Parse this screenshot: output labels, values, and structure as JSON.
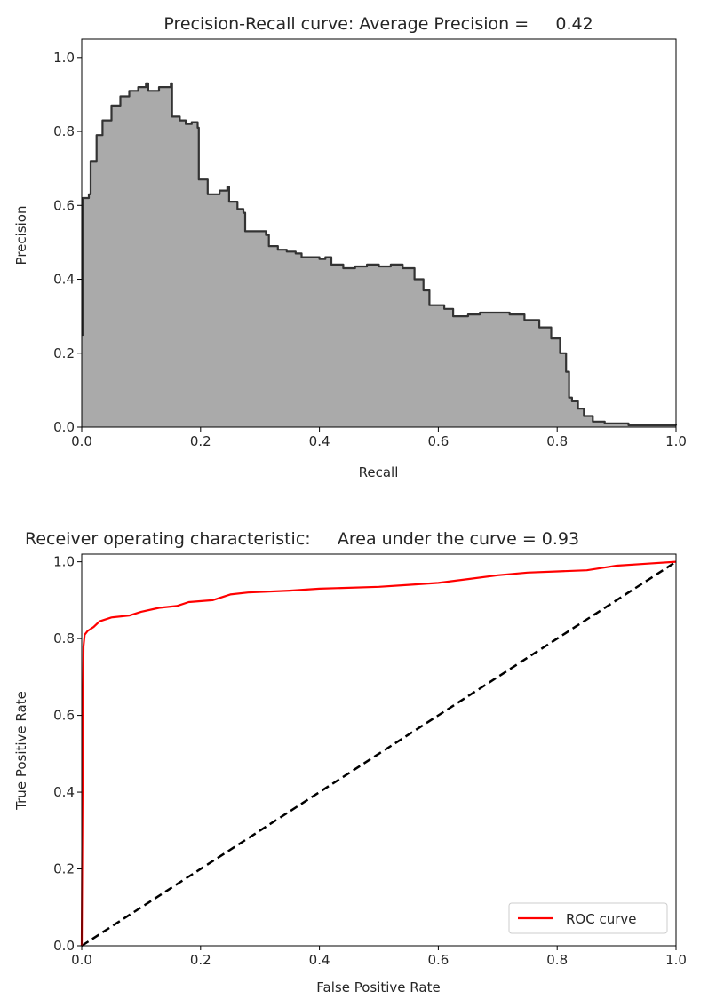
{
  "chart_data": [
    {
      "type": "area",
      "title": "Precision-Recall curve: Average Precision =     0.42",
      "xlabel": "Recall",
      "ylabel": "Precision",
      "xlim": [
        0.0,
        1.0
      ],
      "ylim": [
        0.0,
        1.05
      ],
      "xticks": [
        "0.0",
        "0.2",
        "0.4",
        "0.6",
        "0.8",
        "1.0"
      ],
      "yticks": [
        "0.0",
        "0.2",
        "0.4",
        "0.6",
        "0.8",
        "1.0"
      ],
      "grid": false,
      "legend": null,
      "colors": {
        "fill": "#aaaaaa",
        "line": "#333333"
      },
      "series": [
        {
          "values": [
            [
              0.0,
              0.25
            ],
            [
              0.002,
              0.62
            ],
            [
              0.012,
              0.63
            ],
            [
              0.015,
              0.72
            ],
            [
              0.025,
              0.79
            ],
            [
              0.035,
              0.83
            ],
            [
              0.05,
              0.87
            ],
            [
              0.065,
              0.895
            ],
            [
              0.08,
              0.91
            ],
            [
              0.095,
              0.92
            ],
            [
              0.108,
              0.93
            ],
            [
              0.112,
              0.91
            ],
            [
              0.13,
              0.92
            ],
            [
              0.15,
              0.93
            ],
            [
              0.152,
              0.84
            ],
            [
              0.165,
              0.83
            ],
            [
              0.175,
              0.82
            ],
            [
              0.185,
              0.825
            ],
            [
              0.195,
              0.81
            ],
            [
              0.197,
              0.67
            ],
            [
              0.21,
              0.67
            ],
            [
              0.212,
              0.63
            ],
            [
              0.225,
              0.63
            ],
            [
              0.232,
              0.64
            ],
            [
              0.245,
              0.65
            ],
            [
              0.248,
              0.61
            ],
            [
              0.262,
              0.59
            ],
            [
              0.272,
              0.58
            ],
            [
              0.275,
              0.53
            ],
            [
              0.29,
              0.53
            ],
            [
              0.31,
              0.52
            ],
            [
              0.315,
              0.49
            ],
            [
              0.33,
              0.48
            ],
            [
              0.345,
              0.475
            ],
            [
              0.36,
              0.47
            ],
            [
              0.37,
              0.46
            ],
            [
              0.39,
              0.46
            ],
            [
              0.4,
              0.455
            ],
            [
              0.41,
              0.46
            ],
            [
              0.42,
              0.44
            ],
            [
              0.44,
              0.43
            ],
            [
              0.46,
              0.435
            ],
            [
              0.48,
              0.44
            ],
            [
              0.5,
              0.435
            ],
            [
              0.52,
              0.44
            ],
            [
              0.54,
              0.43
            ],
            [
              0.56,
              0.4
            ],
            [
              0.575,
              0.37
            ],
            [
              0.585,
              0.33
            ],
            [
              0.61,
              0.32
            ],
            [
              0.625,
              0.3
            ],
            [
              0.65,
              0.305
            ],
            [
              0.67,
              0.31
            ],
            [
              0.7,
              0.31
            ],
            [
              0.72,
              0.305
            ],
            [
              0.745,
              0.29
            ],
            [
              0.77,
              0.27
            ],
            [
              0.79,
              0.24
            ],
            [
              0.805,
              0.2
            ],
            [
              0.815,
              0.15
            ],
            [
              0.82,
              0.08
            ],
            [
              0.825,
              0.07
            ],
            [
              0.835,
              0.05
            ],
            [
              0.845,
              0.03
            ],
            [
              0.86,
              0.015
            ],
            [
              0.88,
              0.01
            ],
            [
              0.92,
              0.005
            ],
            [
              1.0,
              0.004
            ]
          ]
        }
      ]
    },
    {
      "type": "line",
      "title": "Receiver operating characteristic:     Area under the curve = 0.93",
      "xlabel": "False Positive Rate",
      "ylabel": "True Positive Rate",
      "xlim": [
        0.0,
        1.0
      ],
      "ylim": [
        0.0,
        1.02
      ],
      "xticks": [
        "0.0",
        "0.2",
        "0.4",
        "0.6",
        "0.8",
        "1.0"
      ],
      "yticks": [
        "0.0",
        "0.2",
        "0.4",
        "0.6",
        "0.8",
        "1.0"
      ],
      "grid": false,
      "legend": "lower-right",
      "colors": {
        "roc": "#ff0000",
        "diagonal": "#000000"
      },
      "series": [
        {
          "name": "ROC curve",
          "values": [
            [
              0.0,
              0.0
            ],
            [
              0.001,
              0.3
            ],
            [
              0.002,
              0.6
            ],
            [
              0.003,
              0.78
            ],
            [
              0.005,
              0.81
            ],
            [
              0.01,
              0.82
            ],
            [
              0.02,
              0.83
            ],
            [
              0.03,
              0.845
            ],
            [
              0.05,
              0.855
            ],
            [
              0.08,
              0.86
            ],
            [
              0.1,
              0.87
            ],
            [
              0.13,
              0.88
            ],
            [
              0.16,
              0.885
            ],
            [
              0.18,
              0.895
            ],
            [
              0.22,
              0.9
            ],
            [
              0.25,
              0.915
            ],
            [
              0.28,
              0.92
            ],
            [
              0.35,
              0.925
            ],
            [
              0.4,
              0.93
            ],
            [
              0.5,
              0.935
            ],
            [
              0.55,
              0.94
            ],
            [
              0.6,
              0.945
            ],
            [
              0.65,
              0.955
            ],
            [
              0.7,
              0.965
            ],
            [
              0.75,
              0.972
            ],
            [
              0.8,
              0.975
            ],
            [
              0.85,
              0.978
            ],
            [
              0.88,
              0.985
            ],
            [
              0.9,
              0.99
            ],
            [
              0.95,
              0.995
            ],
            [
              1.0,
              1.0
            ]
          ]
        },
        {
          "values": [
            [
              0.0,
              0.0
            ],
            [
              1.0,
              1.0
            ]
          ]
        }
      ]
    }
  ]
}
